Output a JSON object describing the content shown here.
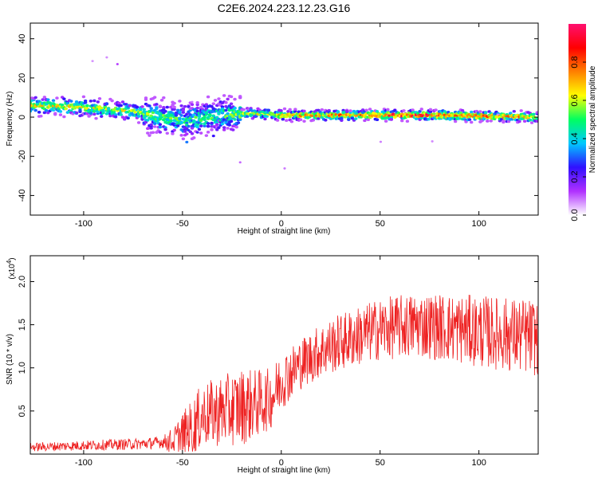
{
  "title": "C2E6.2024.223.12.23.G16",
  "chart_data": [
    {
      "type": "heatmap",
      "xlabel": "Height of straight line (km)",
      "ylabel": "Frequency (Hz)",
      "xlim": [
        -127,
        130
      ],
      "ylim": [
        -50,
        48
      ],
      "x_ticks": [
        -100,
        -50,
        0,
        50,
        100
      ],
      "y_ticks": [
        -40,
        -20,
        0,
        20,
        40
      ],
      "grid": false,
      "colorbar": {
        "label": "Normalized spectral amplitude",
        "range": [
          0,
          1
        ],
        "ticks": [
          "0.0",
          "0.2",
          "0.4",
          "0.6",
          "0.8"
        ],
        "colors": [
          "#ffffff",
          "#b030ff",
          "#3010ff",
          "#00c8ff",
          "#00ff60",
          "#ffff00",
          "#ff8000",
          "#ff0000",
          "#ff1070"
        ]
      },
      "ridge": [
        {
          "x": -127,
          "freq": 6,
          "amp": 0.65
        },
        {
          "x": -100,
          "freq": 5,
          "amp": 0.6
        },
        {
          "x": -75,
          "freq": 3,
          "amp": 0.55
        },
        {
          "x": -50,
          "freq": -2,
          "amp": 0.5
        },
        {
          "x": -30,
          "freq": 1,
          "amp": 0.5
        },
        {
          "x": -15,
          "freq": 2,
          "amp": 0.6
        },
        {
          "x": 0,
          "freq": 1,
          "amp": 0.7
        },
        {
          "x": 50,
          "freq": 1,
          "amp": 0.8
        },
        {
          "x": 80,
          "freq": 1,
          "amp": 0.85
        },
        {
          "x": 130,
          "freq": 0,
          "amp": 0.7
        }
      ]
    },
    {
      "type": "line",
      "xlabel": "Height of straight line (km)",
      "ylabel": "SNR (10 * v/v)",
      "y_multiplier": "(x10",
      "y_multiplier_exp": "4",
      "y_multiplier_close": ")",
      "xlim": [
        -127,
        130
      ],
      "ylim": [
        0,
        2.3
      ],
      "x_ticks": [
        -100,
        -50,
        0,
        50,
        100
      ],
      "y_ticks": [
        0.5,
        1.0,
        1.5,
        2.0
      ],
      "y_tick_labels": [
        "0.5",
        "1.0",
        "1.5",
        "2.0"
      ],
      "grid": false,
      "series": [
        {
          "color": "#ee2222",
          "trend": [
            {
              "x": -127,
              "y": 0.08
            },
            {
              "x": -100,
              "y": 0.1
            },
            {
              "x": -70,
              "y": 0.12
            },
            {
              "x": -55,
              "y": 0.15
            },
            {
              "x": -45,
              "y": 0.3
            },
            {
              "x": -40,
              "y": 0.45
            },
            {
              "x": -30,
              "y": 0.5
            },
            {
              "x": -20,
              "y": 0.55
            },
            {
              "x": -10,
              "y": 0.6
            },
            {
              "x": -5,
              "y": 0.65
            },
            {
              "x": 0,
              "y": 0.85
            },
            {
              "x": 10,
              "y": 1.05
            },
            {
              "x": 20,
              "y": 1.2
            },
            {
              "x": 30,
              "y": 1.3
            },
            {
              "x": 50,
              "y": 1.45
            },
            {
              "x": 70,
              "y": 1.5
            },
            {
              "x": 90,
              "y": 1.45
            },
            {
              "x": 110,
              "y": 1.4
            },
            {
              "x": 130,
              "y": 1.35
            }
          ],
          "noise": [
            {
              "x": -127,
              "amp": 0.05
            },
            {
              "x": -60,
              "amp": 0.07
            },
            {
              "x": -45,
              "amp": 0.35
            },
            {
              "x": -20,
              "amp": 0.45
            },
            {
              "x": -5,
              "amp": 0.35
            },
            {
              "x": 10,
              "amp": 0.3
            },
            {
              "x": 40,
              "amp": 0.35
            },
            {
              "x": 130,
              "amp": 0.45
            }
          ]
        }
      ]
    }
  ]
}
